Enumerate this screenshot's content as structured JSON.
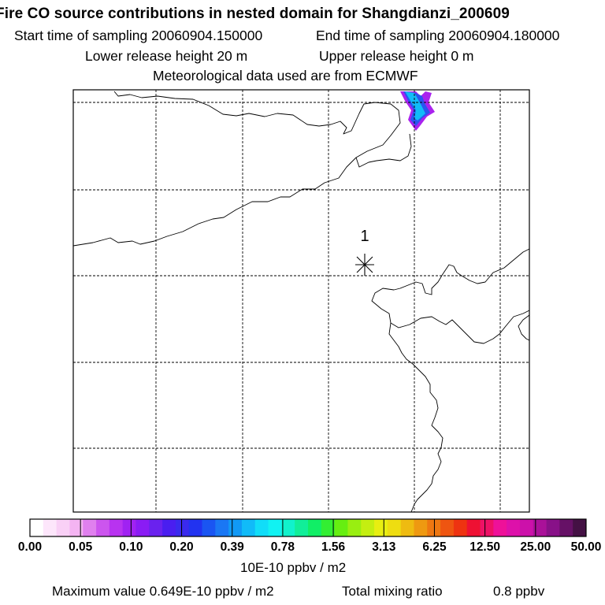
{
  "chart_data": {
    "type": "heatmap",
    "title": "Fire CO source contributions in nested domain for Shangdianzi_200609",
    "subtitle_lines": {
      "start": "Start time of sampling 20060904.150000",
      "end": "End time of sampling 20060904.180000",
      "lower": "Lower release height   20 m",
      "upper": "Upper release height    0 m",
      "met": "Meteorological data used are from ECMWF"
    },
    "station_label": "1",
    "colorbar": {
      "tick_labels": [
        "0.00",
        "0.05",
        "0.10",
        "0.20",
        "0.39",
        "0.78",
        "1.56",
        "3.13",
        "6.25",
        "12.50",
        "25.00",
        "50.00"
      ],
      "colors": [
        "#ffffff",
        "#fde6fb",
        "#f9d0f6",
        "#f4b4f2",
        "#e080ee",
        "#cc55ee",
        "#b833f0",
        "#a022f2",
        "#8a1cf4",
        "#6a22ee",
        "#4a1ef0",
        "#3a2aee",
        "#2233f0",
        "#1a55f2",
        "#1a77f4",
        "#1199f6",
        "#11bbf8",
        "#11ddf8",
        "#11f2f2",
        "#11f2cc",
        "#11ee99",
        "#11ee66",
        "#33ee33",
        "#66ee11",
        "#99ee11",
        "#c4ee11",
        "#e8ee11",
        "#eedd11",
        "#eebb11",
        "#ee9911",
        "#ee7711",
        "#ee5511",
        "#ee3311",
        "#ee1133",
        "#ee1166",
        "#ee1199",
        "#dd11aa",
        "#cc11aa",
        "#aa1199",
        "#881188",
        "#661166",
        "#441144"
      ],
      "unit": "10E-10 ppbv / m2"
    },
    "footer": {
      "maximum": "Maximum value  0.649E-10 ppbv / m2",
      "mixing_label": "Total mixing ratio",
      "mixing_value": "0.8 ppbv"
    },
    "plume": {
      "max_value": 0.649,
      "colors": [
        "#aa22ee",
        "#2a55f0",
        "#11bbf8"
      ]
    }
  }
}
